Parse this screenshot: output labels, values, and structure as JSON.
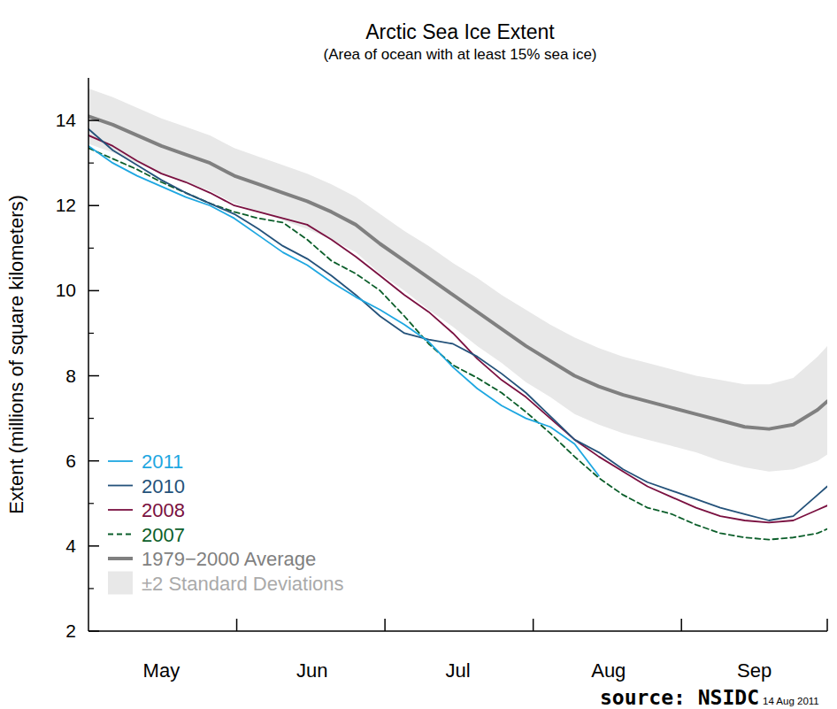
{
  "chart_data": {
    "type": "line",
    "title": "Arctic Sea Ice Extent",
    "subtitle": "(Area of ocean with at least 15% sea ice)",
    "y_label": "Extent (millions of square kilometers)",
    "x": [
      0,
      5,
      10,
      15,
      20,
      25,
      30,
      35,
      40,
      45,
      50,
      55,
      60,
      65,
      70,
      75,
      80,
      85,
      90,
      95,
      100,
      105,
      110,
      115,
      120,
      125,
      130,
      135,
      140,
      145,
      150,
      152
    ],
    "xlim": [
      0,
      152
    ],
    "xticks": [
      {
        "value": 15,
        "label": "May"
      },
      {
        "value": 46,
        "label": "Jun"
      },
      {
        "value": 76,
        "label": "Jul"
      },
      {
        "value": 107,
        "label": "Aug"
      },
      {
        "value": 137,
        "label": "Sep"
      }
    ],
    "ylim": [
      2,
      15
    ],
    "yticks": [
      2,
      4,
      6,
      8,
      10,
      12,
      14
    ],
    "legend": "lower left",
    "series": [
      {
        "name": "2011",
        "color": "#1ea7e1",
        "values": [
          13.4,
          13.0,
          12.7,
          12.45,
          12.2,
          12.0,
          11.7,
          11.3,
          10.9,
          10.6,
          10.2,
          9.85,
          9.55,
          9.2,
          8.8,
          8.2,
          7.7,
          7.3,
          7.0,
          6.8,
          6.4,
          5.65,
          null,
          null,
          null,
          null,
          null,
          null,
          null,
          null,
          null,
          null
        ]
      },
      {
        "name": "2010",
        "color": "#24527a",
        "values": [
          13.8,
          13.3,
          12.95,
          12.6,
          12.3,
          12.05,
          11.8,
          11.45,
          11.05,
          10.75,
          10.35,
          9.9,
          9.4,
          9.0,
          8.85,
          8.75,
          8.45,
          8.05,
          7.6,
          7.05,
          6.5,
          6.2,
          5.8,
          5.5,
          5.3,
          5.1,
          4.9,
          4.75,
          4.6,
          4.7,
          5.2,
          5.4
        ]
      },
      {
        "name": "2008",
        "color": "#7a1040",
        "values": [
          13.65,
          13.4,
          13.05,
          12.75,
          12.55,
          12.3,
          12.0,
          11.85,
          11.7,
          11.55,
          11.2,
          10.8,
          10.35,
          9.9,
          9.5,
          9.0,
          8.4,
          7.9,
          7.5,
          7.0,
          6.5,
          6.1,
          5.75,
          5.4,
          5.15,
          4.9,
          4.7,
          4.6,
          4.55,
          4.6,
          4.85,
          4.95
        ]
      },
      {
        "name": "2007",
        "color": "#0b5e2a",
        "line_style": "dashed",
        "values": [
          13.35,
          13.1,
          12.85,
          12.55,
          12.3,
          12.05,
          11.85,
          11.7,
          11.6,
          11.2,
          10.7,
          10.4,
          10.0,
          9.4,
          8.75,
          8.25,
          7.95,
          7.6,
          7.15,
          6.65,
          6.1,
          5.6,
          5.2,
          4.9,
          4.75,
          4.5,
          4.3,
          4.2,
          4.15,
          4.2,
          4.3,
          4.4
        ]
      },
      {
        "name": "1979−2000 Average",
        "color": "#808080",
        "values": [
          14.1,
          13.9,
          13.65,
          13.4,
          13.2,
          13.0,
          12.7,
          12.5,
          12.3,
          12.1,
          11.85,
          11.55,
          11.1,
          10.7,
          10.3,
          9.9,
          9.5,
          9.1,
          8.7,
          8.35,
          8.0,
          7.75,
          7.55,
          7.4,
          7.25,
          7.1,
          6.95,
          6.8,
          6.75,
          6.85,
          7.2,
          7.4
        ]
      },
      {
        "name": "±2 Standard Deviations",
        "type": "area",
        "color": "#e8e8e8",
        "upper": [
          14.75,
          14.55,
          14.3,
          14.05,
          13.85,
          13.65,
          13.35,
          13.15,
          12.95,
          12.75,
          12.5,
          12.2,
          11.8,
          11.4,
          11.05,
          10.65,
          10.3,
          9.9,
          9.55,
          9.2,
          8.9,
          8.65,
          8.45,
          8.3,
          8.15,
          8.0,
          7.9,
          7.8,
          7.8,
          7.95,
          8.45,
          8.7
        ],
        "lower": [
          13.45,
          13.25,
          13.0,
          12.75,
          12.55,
          12.35,
          12.05,
          11.85,
          11.65,
          11.45,
          11.2,
          10.9,
          10.4,
          10.0,
          9.55,
          9.15,
          8.7,
          8.3,
          7.85,
          7.5,
          7.1,
          6.85,
          6.65,
          6.5,
          6.35,
          6.2,
          6.0,
          5.85,
          5.75,
          5.8,
          6.0,
          6.15
        ]
      }
    ],
    "annotations": [
      {
        "text": "source: NSIDC"
      },
      {
        "text": "14 Aug 2011"
      }
    ]
  }
}
